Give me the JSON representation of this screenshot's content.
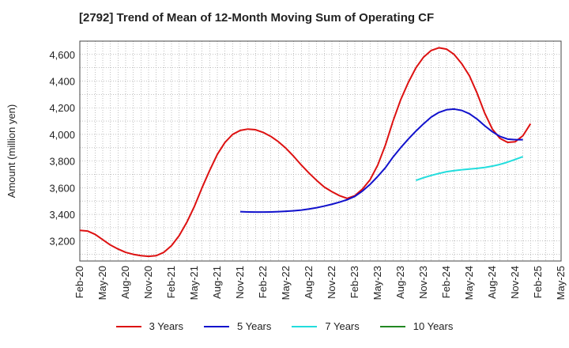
{
  "chart_data": {
    "type": "line",
    "title": "[2792]  Trend of Mean of 12-Month Moving Sum of Operating CF",
    "xlabel": "",
    "ylabel": "Amount (million yen)",
    "ylim": [
      3050,
      4700
    ],
    "yticks": [
      3200,
      3400,
      3600,
      3800,
      4000,
      4200,
      4400,
      4600
    ],
    "ytick_labels": [
      "3,200",
      "3,400",
      "3,600",
      "3,800",
      "4,000",
      "4,200",
      "4,400",
      "4,600"
    ],
    "x_start": "2020-02",
    "x_end": "2025-05",
    "xtick_labels": [
      "Feb-20",
      "May-20",
      "Aug-20",
      "Nov-20",
      "Feb-21",
      "May-21",
      "Aug-21",
      "Nov-21",
      "Feb-22",
      "May-22",
      "Aug-22",
      "Nov-22",
      "Feb-23",
      "May-23",
      "Aug-23",
      "Nov-23",
      "Feb-24",
      "May-24",
      "Aug-24",
      "Nov-24",
      "Feb-25",
      "May-25"
    ],
    "grid": true,
    "series": [
      {
        "name": "3 Years",
        "color": "#dd1111",
        "start": "2020-02",
        "values": [
          3280,
          3275,
          3250,
          3210,
          3170,
          3140,
          3115,
          3100,
          3090,
          3085,
          3090,
          3115,
          3165,
          3240,
          3340,
          3460,
          3600,
          3730,
          3850,
          3940,
          4000,
          4030,
          4040,
          4035,
          4015,
          3985,
          3945,
          3895,
          3835,
          3770,
          3710,
          3655,
          3605,
          3570,
          3540,
          3520,
          3540,
          3590,
          3660,
          3770,
          3920,
          4100,
          4260,
          4390,
          4500,
          4580,
          4630,
          4650,
          4640,
          4600,
          4530,
          4440,
          4310,
          4160,
          4040,
          3970,
          3940,
          3945,
          3990,
          4080
        ]
      },
      {
        "name": "5 Years",
        "color": "#1111cc",
        "start": "2021-11",
        "values": [
          3420,
          3418,
          3417,
          3417,
          3418,
          3420,
          3423,
          3427,
          3432,
          3440,
          3450,
          3462,
          3476,
          3492,
          3510,
          3535,
          3575,
          3625,
          3685,
          3750,
          3830,
          3900,
          3965,
          4025,
          4080,
          4130,
          4165,
          4185,
          4190,
          4180,
          4155,
          4115,
          4065,
          4020,
          3985,
          3965,
          3960,
          3960
        ]
      },
      {
        "name": "7 Years",
        "color": "#22dddd",
        "start": "2023-10",
        "values": [
          3655,
          3675,
          3692,
          3707,
          3720,
          3728,
          3735,
          3740,
          3745,
          3752,
          3762,
          3775,
          3792,
          3812,
          3833
        ]
      },
      {
        "name": "10 Years",
        "color": "#228822",
        "start": "2020-02",
        "values": []
      }
    ]
  }
}
